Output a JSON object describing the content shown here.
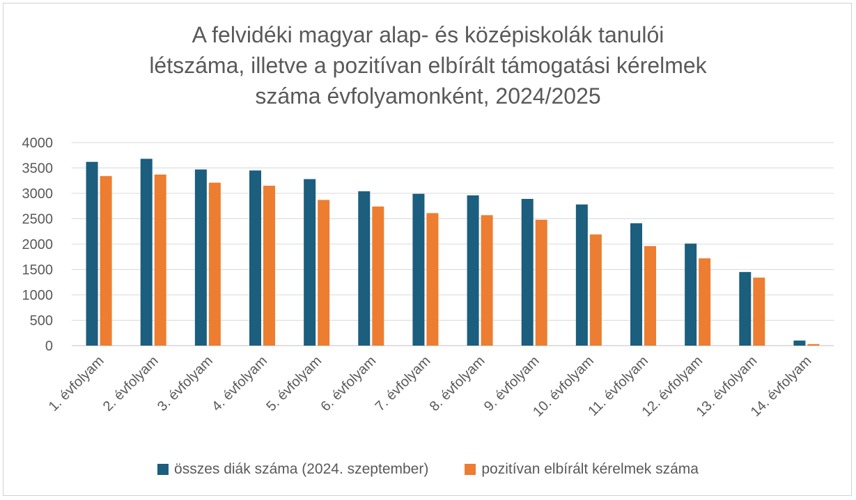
{
  "chart_data": {
    "type": "bar",
    "title_lines": [
      "A felvidéki magyar alap- és középiskolák tanulói",
      "létszáma, illetve a pozitívan elbírált támogatási kérelmek",
      "száma évfolyamonként, 2024/2025"
    ],
    "xlabel": "",
    "ylabel": "",
    "ylim": [
      0,
      4000
    ],
    "yticks": [
      "0",
      "500",
      "1000",
      "1500",
      "2000",
      "2500",
      "3000",
      "3500",
      "4000"
    ],
    "grid": true,
    "legend_position": "bottom",
    "categories": [
      "1. évfolyam",
      "2. évfolyam",
      "3. évfolyam",
      "4. évfolyam",
      "5. évfolyam",
      "6. évfolyam",
      "7. évfolyam",
      "8. évfolyam",
      "9. évfolyam",
      "10. évfolyam",
      "11. évfolyam",
      "12. évfolyam",
      "13. évfolyam",
      "14. évfolyam"
    ],
    "series": [
      {
        "name": "összes diák száma (2024. szeptember)",
        "color": "#1b5e7e",
        "values": [
          3620,
          3680,
          3470,
          3450,
          3280,
          3040,
          2990,
          2960,
          2890,
          2780,
          2410,
          2010,
          1450,
          100
        ]
      },
      {
        "name": "pozitívan elbírált kérelmek száma",
        "color": "#ed7d31",
        "values": [
          3340,
          3370,
          3210,
          3150,
          2870,
          2740,
          2610,
          2570,
          2480,
          2190,
          1960,
          1720,
          1340,
          30
        ]
      }
    ]
  }
}
